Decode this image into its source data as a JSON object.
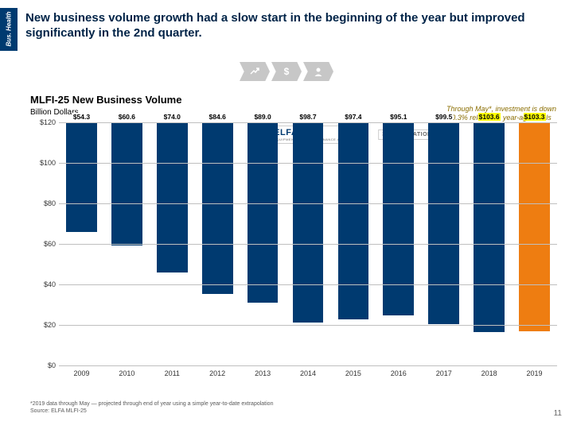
{
  "meta": {
    "side_tab": "Bus. Health",
    "headline": "New business volume growth had a slow start in the beginning of the year but improved significantly in the 2nd quarter.",
    "page_number": "11"
  },
  "icons": [
    "trend",
    "dollar",
    "user"
  ],
  "chart": {
    "type": "bar",
    "title": "MLFI-25 New Business Volume",
    "subtitle": "Billion Dollars",
    "annotation": "Through May*, investment is down 0.3% relative to year-ago levels",
    "ylim": [
      0,
      120
    ],
    "ytick_step": 20,
    "ylabels": [
      "$0",
      "$20",
      "$40",
      "$60",
      "$80",
      "$100",
      "$120"
    ],
    "categories": [
      "2009",
      "2010",
      "2011",
      "2012",
      "2013",
      "2014",
      "2015",
      "2016",
      "2017",
      "2018",
      "2019"
    ],
    "values": [
      54.3,
      60.6,
      74.0,
      84.6,
      89.0,
      98.7,
      97.4,
      95.1,
      99.5,
      103.6,
      103.3
    ],
    "value_labels": [
      "$54.3",
      "$60.6",
      "$74.0",
      "$84.6",
      "$89.0",
      "$98.7",
      "$97.4",
      "$95.1",
      "$99.5",
      "$103.6",
      "$103.3"
    ],
    "bar_colors": [
      "#003a70",
      "#003a70",
      "#003a70",
      "#003a70",
      "#003a70",
      "#003a70",
      "#003a70",
      "#003a70",
      "#003a70",
      "#003a70",
      "#ee7d11"
    ],
    "label_bg_colors": [
      "#ffffff",
      "#ffffff",
      "#ffffff",
      "#ffffff",
      "#ffffff",
      "#ffffff",
      "#ffffff",
      "#ffffff",
      "#ffffff",
      "#ffff00",
      "#ffff00"
    ],
    "background_color": "#ffffff",
    "grid_color": "#bfbfbf",
    "bar_width": 0.68
  },
  "logos": {
    "elfa": "ELFA",
    "elfa_sub": "EQUIPMENT LEASING & FINANCE ASSOCIATION",
    "foundation": "30 FOUNDATION"
  },
  "footnote": {
    "line1": "*2019 data through May — projected through end of year using a simple year-to-date extrapolation",
    "line2": "Source: ELFA MLFI-25"
  }
}
